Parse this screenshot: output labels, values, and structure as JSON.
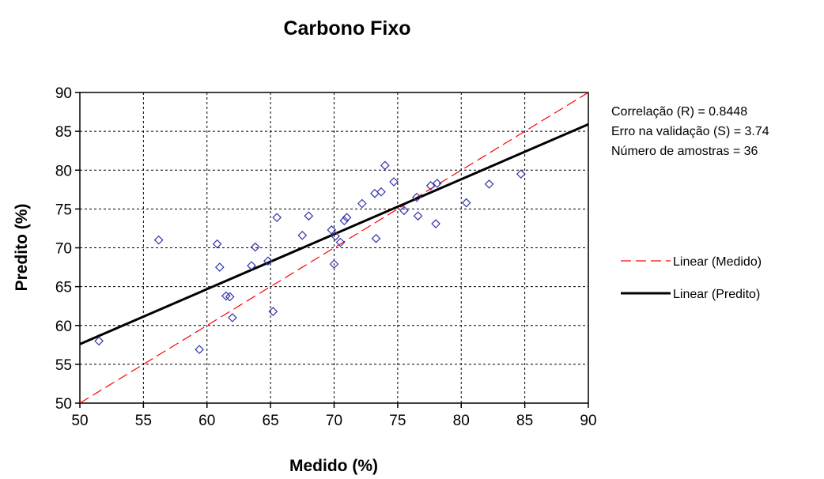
{
  "chart_data": {
    "type": "scatter",
    "title": "Carbono Fixo",
    "xlabel": "Medido (%)",
    "ylabel": "Predito (%)",
    "xlim": [
      50,
      90
    ],
    "ylim": [
      50,
      90
    ],
    "xticks": [
      50,
      55,
      60,
      65,
      70,
      75,
      80,
      85,
      90
    ],
    "yticks": [
      50,
      55,
      60,
      65,
      70,
      75,
      80,
      85,
      90
    ],
    "grid": true,
    "legend_position": "right",
    "stats": [
      "Correlação (R)  =  0.8448",
      "Erro na validação (S) = 3.74",
      "Número de amostras = 36"
    ],
    "points": {
      "color": "#3333aa",
      "x": [
        51.5,
        56.2,
        59.4,
        60.8,
        61.0,
        61.5,
        61.8,
        62.0,
        63.5,
        63.8,
        64.8,
        65.2,
        65.5,
        67.5,
        68.0,
        69.8,
        70.0,
        70.1,
        70.5,
        70.8,
        71.0,
        72.2,
        73.2,
        73.3,
        73.7,
        74.0,
        74.7,
        75.5,
        76.5,
        76.6,
        77.6,
        78.0,
        78.1,
        80.4,
        82.2,
        84.7
      ],
      "y": [
        58.0,
        71.0,
        56.9,
        70.5,
        67.5,
        63.8,
        63.7,
        61.0,
        67.7,
        70.1,
        68.3,
        61.8,
        73.9,
        71.6,
        74.1,
        72.3,
        67.9,
        71.5,
        70.7,
        73.5,
        73.9,
        75.7,
        77.0,
        71.2,
        77.2,
        80.6,
        78.5,
        74.8,
        76.5,
        74.1,
        78.0,
        73.1,
        78.3,
        75.8,
        78.2,
        79.5
      ]
    },
    "series": [
      {
        "name": "Linear (Medido)",
        "color": "#ff0000",
        "style": "dashed",
        "x": [
          50,
          90
        ],
        "y": [
          50,
          90
        ]
      },
      {
        "name": "Linear (Predito)",
        "color": "#000000",
        "style": "solid",
        "x": [
          50,
          90
        ],
        "y": [
          57.6,
          85.9
        ]
      }
    ]
  }
}
